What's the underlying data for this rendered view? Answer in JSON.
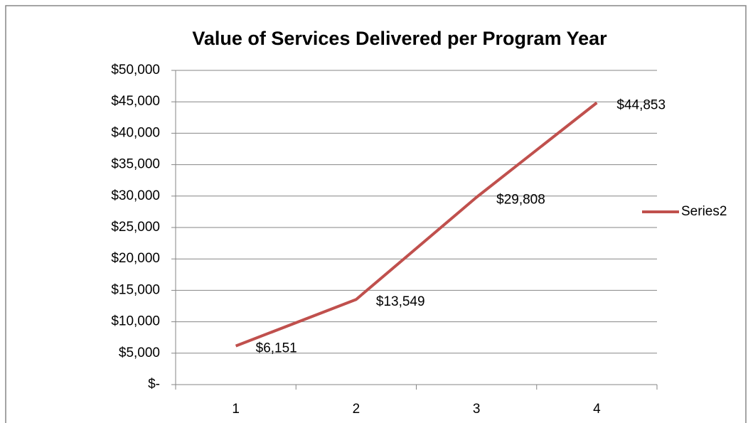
{
  "chart_data": {
    "type": "line",
    "title": "Value of Services Delivered per Program Year",
    "categories": [
      "1",
      "2",
      "3",
      "4"
    ],
    "series": [
      {
        "name": "Series2",
        "color": "#c0504d",
        "values": [
          6151,
          13549,
          29808,
          44853
        ],
        "value_labels": [
          "$6,151",
          "$13,549",
          "$29,808",
          "$44,853"
        ]
      }
    ],
    "ylim": [
      0,
      50000
    ],
    "yticks": [
      {
        "value": 0,
        "label": "$-"
      },
      {
        "value": 5000,
        "label": "$5,000"
      },
      {
        "value": 10000,
        "label": "$10,000"
      },
      {
        "value": 15000,
        "label": "$15,000"
      },
      {
        "value": 20000,
        "label": "$20,000"
      },
      {
        "value": 25000,
        "label": "$25,000"
      },
      {
        "value": 30000,
        "label": "$30,000"
      },
      {
        "value": 35000,
        "label": "$35,000"
      },
      {
        "value": 40000,
        "label": "$40,000"
      },
      {
        "value": 45000,
        "label": "$45,000"
      },
      {
        "value": 50000,
        "label": "$50,000"
      }
    ],
    "grid": true,
    "legend": "right"
  }
}
